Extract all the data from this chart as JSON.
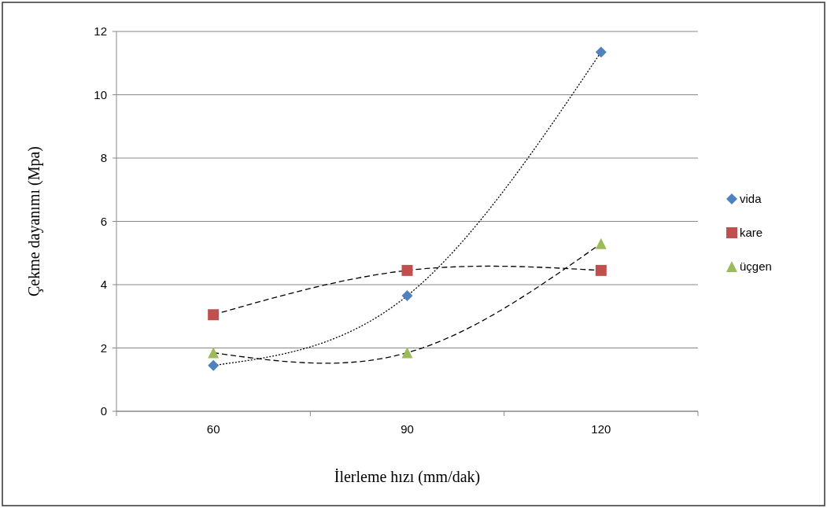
{
  "chart_data": {
    "type": "line",
    "xlabel": "İlerleme hızı (mm/dak)",
    "ylabel": "Çekme dayanımı (Mpa)",
    "categories": [
      "60",
      "90",
      "120"
    ],
    "series": [
      {
        "name": "vida",
        "color": "#4f81bd",
        "marker": "diamond",
        "line_style": "dotted",
        "values": [
          1.45,
          3.65,
          11.35
        ]
      },
      {
        "name": "kare",
        "color": "#c0504d",
        "marker": "square",
        "line_style": "dashed",
        "values": [
          3.05,
          4.45,
          4.45
        ]
      },
      {
        "name": "üçgen",
        "color": "#9bbb59",
        "marker": "triangle",
        "line_style": "dashed",
        "values": [
          1.85,
          1.85,
          5.3
        ]
      }
    ],
    "ylim": [
      0,
      12
    ],
    "yticks": [
      0,
      2,
      4,
      6,
      8,
      10,
      12
    ],
    "grid": "y",
    "legend": "right"
  }
}
